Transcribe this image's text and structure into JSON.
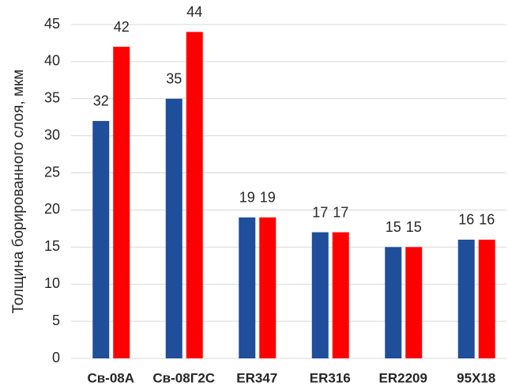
{
  "chart_data": {
    "type": "bar",
    "y_label": "Толщина борированного слоя, мкм",
    "categories": [
      "Св-08А",
      "Св-08Г2С",
      "ER347",
      "ER316",
      "ER2209",
      "95Х18"
    ],
    "series": [
      {
        "color": "#1f4e9a",
        "values": [
          32,
          35,
          19,
          17,
          15,
          16
        ]
      },
      {
        "color": "#ff0000",
        "values": [
          42,
          44,
          19,
          17,
          15,
          16
        ]
      }
    ],
    "ylim": [
      0,
      45
    ],
    "yticks": [
      0,
      5,
      10,
      15,
      20,
      25,
      30,
      35,
      40,
      45
    ],
    "grid": true
  }
}
